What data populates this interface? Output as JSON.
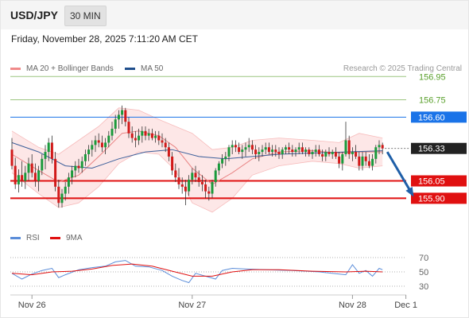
{
  "header": {
    "symbol": "USD/JPY",
    "timeframe": "30 MIN"
  },
  "datetime": "Friday, November 28, 2025 7:11:20 AM CET",
  "legend": {
    "ma20": {
      "label": "MA 20 + Bollinger Bands",
      "color": "#f08a8a"
    },
    "ma50": {
      "label": "MA 50",
      "color": "#1f4e8c"
    },
    "credit": "Research © 2025 Trading Central"
  },
  "rsi_legend": {
    "rsi": {
      "label": "RSI",
      "color": "#5b8dd9"
    },
    "ma9": {
      "label": "9MA",
      "color": "#e01010"
    }
  },
  "chart_data": {
    "type": "candlestick",
    "price_range": [
      155.8,
      157.0
    ],
    "levels": [
      {
        "value": "156.95",
        "price": 156.95,
        "kind": "target",
        "color": "#5aa02c"
      },
      {
        "value": "156.75",
        "price": 156.75,
        "kind": "target",
        "color": "#5aa02c"
      },
      {
        "value": "156.60",
        "price": 156.6,
        "kind": "pivot",
        "color": "#1a73e8"
      },
      {
        "value": "156.05",
        "price": 156.05,
        "kind": "support",
        "color": "#e01010"
      },
      {
        "value": "155.90",
        "price": 155.9,
        "kind": "support",
        "color": "#e01010"
      }
    ],
    "last_price": "156.33",
    "x_ticks": [
      {
        "label": "Nov 26",
        "index": 6
      },
      {
        "label": "Nov 27",
        "index": 54
      },
      {
        "label": "Nov 28",
        "index": 102
      },
      {
        "label": "Dec 1",
        "index": 118
      }
    ],
    "rsi_ticks": [
      "70",
      "50",
      "30"
    ],
    "rsi_range": [
      20,
      80
    ],
    "candles": [
      [
        156.32,
        156.42,
        156.15,
        156.18
      ],
      [
        156.18,
        156.25,
        155.98,
        156.02
      ],
      [
        156.02,
        156.15,
        155.95,
        156.1
      ],
      [
        156.1,
        156.22,
        156.0,
        156.05
      ],
      [
        156.05,
        156.18,
        155.98,
        156.12
      ],
      [
        156.12,
        156.25,
        156.05,
        156.2
      ],
      [
        156.2,
        156.28,
        156.08,
        156.12
      ],
      [
        156.12,
        156.2,
        156.0,
        156.05
      ],
      [
        156.05,
        156.18,
        155.96,
        156.14
      ],
      [
        156.14,
        156.28,
        156.1,
        156.24
      ],
      [
        156.24,
        156.36,
        156.15,
        156.3
      ],
      [
        156.3,
        156.42,
        156.22,
        156.38
      ],
      [
        156.38,
        156.44,
        156.2,
        156.24
      ],
      [
        156.24,
        156.3,
        155.96,
        156.0
      ],
      [
        156.0,
        156.06,
        155.82,
        155.86
      ],
      [
        155.86,
        155.98,
        155.82,
        155.94
      ],
      [
        155.94,
        156.04,
        155.88,
        156.0
      ],
      [
        156.0,
        156.12,
        155.94,
        156.08
      ],
      [
        156.08,
        156.18,
        156.02,
        156.14
      ],
      [
        156.14,
        156.22,
        156.08,
        156.18
      ],
      [
        156.18,
        156.24,
        156.12,
        156.16
      ],
      [
        156.16,
        156.26,
        156.12,
        156.22
      ],
      [
        156.22,
        156.32,
        156.18,
        156.28
      ],
      [
        156.28,
        156.36,
        156.22,
        156.32
      ],
      [
        156.32,
        156.4,
        156.26,
        156.36
      ],
      [
        156.36,
        156.44,
        156.3,
        156.4
      ],
      [
        156.4,
        156.46,
        156.34,
        156.38
      ],
      [
        156.38,
        156.44,
        156.3,
        156.34
      ],
      [
        156.34,
        156.42,
        156.28,
        156.38
      ],
      [
        156.38,
        156.48,
        156.34,
        156.44
      ],
      [
        156.44,
        156.56,
        156.4,
        156.5
      ],
      [
        156.5,
        156.62,
        156.46,
        156.58
      ],
      [
        156.58,
        156.66,
        156.5,
        156.62
      ],
      [
        156.62,
        156.7,
        156.54,
        156.66
      ],
      [
        156.66,
        156.68,
        156.52,
        156.56
      ],
      [
        156.56,
        156.6,
        156.42,
        156.46
      ],
      [
        156.46,
        156.52,
        156.38,
        156.42
      ],
      [
        156.42,
        156.48,
        156.34,
        156.4
      ],
      [
        156.4,
        156.5,
        156.36,
        156.44
      ],
      [
        156.44,
        156.52,
        156.38,
        156.48
      ],
      [
        156.48,
        156.52,
        156.4,
        156.44
      ],
      [
        156.44,
        156.5,
        156.4,
        156.46
      ],
      [
        156.46,
        156.5,
        156.4,
        156.42
      ],
      [
        156.42,
        156.48,
        156.38,
        156.44
      ],
      [
        156.44,
        156.48,
        156.36,
        156.4
      ],
      [
        156.4,
        156.46,
        156.34,
        156.38
      ],
      [
        156.38,
        156.42,
        156.3,
        156.34
      ],
      [
        156.34,
        156.38,
        156.22,
        156.26
      ],
      [
        156.26,
        156.3,
        156.1,
        156.14
      ],
      [
        156.14,
        156.2,
        156.04,
        156.08
      ],
      [
        156.08,
        156.16,
        155.98,
        156.02
      ],
      [
        156.02,
        156.08,
        155.94,
        156.0
      ],
      [
        156.0,
        156.06,
        155.84,
        155.96
      ],
      [
        155.96,
        156.1,
        155.92,
        156.06
      ],
      [
        156.06,
        156.16,
        156.02,
        156.12
      ],
      [
        156.12,
        156.18,
        156.04,
        156.08
      ],
      [
        156.08,
        156.14,
        156.0,
        156.04
      ],
      [
        156.04,
        156.1,
        155.96,
        156.02
      ],
      [
        156.02,
        156.06,
        155.9,
        155.96
      ],
      [
        155.96,
        156.0,
        155.88,
        155.94
      ],
      [
        155.94,
        156.06,
        155.9,
        156.04
      ],
      [
        156.04,
        156.16,
        156.0,
        156.14
      ],
      [
        156.14,
        156.22,
        156.1,
        156.2
      ],
      [
        156.2,
        156.28,
        156.16,
        156.24
      ],
      [
        156.24,
        156.3,
        156.18,
        156.26
      ],
      [
        156.26,
        156.36,
        156.22,
        156.34
      ],
      [
        156.34,
        156.4,
        156.28,
        156.36
      ],
      [
        156.36,
        156.4,
        156.3,
        156.34
      ],
      [
        156.34,
        156.38,
        156.28,
        156.3
      ],
      [
        156.3,
        156.36,
        156.24,
        156.32
      ],
      [
        156.32,
        156.38,
        156.26,
        156.34
      ],
      [
        156.34,
        156.42,
        156.3,
        156.36
      ],
      [
        156.36,
        156.4,
        156.28,
        156.32
      ],
      [
        156.32,
        156.36,
        156.24,
        156.28
      ],
      [
        156.28,
        156.34,
        156.22,
        156.3
      ],
      [
        156.3,
        156.36,
        156.26,
        156.32
      ],
      [
        156.32,
        156.38,
        156.28,
        156.34
      ],
      [
        156.34,
        156.38,
        156.28,
        156.3
      ],
      [
        156.3,
        156.36,
        156.26,
        156.32
      ],
      [
        156.32,
        156.36,
        156.26,
        156.3
      ],
      [
        156.3,
        156.34,
        156.24,
        156.28
      ],
      [
        156.28,
        156.34,
        156.24,
        156.32
      ],
      [
        156.32,
        156.36,
        156.28,
        156.34
      ],
      [
        156.34,
        156.38,
        156.28,
        156.32
      ],
      [
        156.32,
        156.36,
        156.26,
        156.3
      ],
      [
        156.3,
        156.34,
        156.26,
        156.32
      ],
      [
        156.32,
        156.38,
        156.28,
        156.34
      ],
      [
        156.34,
        156.38,
        156.28,
        156.3
      ],
      [
        156.3,
        156.34,
        156.26,
        156.32
      ],
      [
        156.32,
        156.34,
        156.26,
        156.28
      ],
      [
        156.28,
        156.32,
        156.24,
        156.3
      ],
      [
        156.3,
        156.36,
        156.26,
        156.32
      ],
      [
        156.32,
        156.36,
        156.26,
        156.28
      ],
      [
        156.28,
        156.32,
        156.22,
        156.26
      ],
      [
        156.26,
        156.32,
        156.22,
        156.3
      ],
      [
        156.3,
        156.34,
        156.26,
        156.28
      ],
      [
        156.28,
        156.32,
        156.24,
        156.3
      ],
      [
        156.3,
        156.34,
        156.24,
        156.26
      ],
      [
        156.26,
        156.3,
        156.16,
        156.2
      ],
      [
        156.2,
        156.3,
        156.14,
        156.28
      ],
      [
        156.28,
        156.56,
        156.26,
        156.4
      ],
      [
        156.4,
        156.44,
        156.24,
        156.28
      ],
      [
        156.28,
        156.34,
        156.22,
        156.3
      ],
      [
        156.3,
        156.36,
        156.24,
        156.26
      ],
      [
        156.26,
        156.3,
        156.14,
        156.18
      ],
      [
        156.18,
        156.3,
        156.14,
        156.26
      ],
      [
        156.26,
        156.3,
        156.18,
        156.22
      ],
      [
        156.22,
        156.28,
        156.16,
        156.18
      ],
      [
        156.18,
        156.28,
        156.14,
        156.24
      ],
      [
        156.24,
        156.36,
        156.2,
        156.34
      ],
      [
        156.34,
        156.4,
        156.28,
        156.36
      ],
      [
        156.36,
        156.38,
        156.28,
        156.33
      ]
    ],
    "ma20": [
      [
        0,
        156.28
      ],
      [
        8,
        156.14
      ],
      [
        14,
        156.04
      ],
      [
        20,
        156.1
      ],
      [
        26,
        156.26
      ],
      [
        33,
        156.46
      ],
      [
        38,
        156.48
      ],
      [
        44,
        156.44
      ],
      [
        49,
        156.34
      ],
      [
        54,
        156.16
      ],
      [
        60,
        156.02
      ],
      [
        66,
        156.12
      ],
      [
        72,
        156.24
      ],
      [
        80,
        156.3
      ],
      [
        90,
        156.31
      ],
      [
        98,
        156.29
      ],
      [
        104,
        156.3
      ],
      [
        111,
        156.3
      ]
    ],
    "bb_upper": [
      [
        0,
        156.48
      ],
      [
        8,
        156.34
      ],
      [
        14,
        156.28
      ],
      [
        20,
        156.4
      ],
      [
        26,
        156.52
      ],
      [
        32,
        156.68
      ],
      [
        38,
        156.66
      ],
      [
        44,
        156.58
      ],
      [
        49,
        156.52
      ],
      [
        54,
        156.46
      ],
      [
        60,
        156.32
      ],
      [
        66,
        156.34
      ],
      [
        72,
        156.4
      ],
      [
        80,
        156.42
      ],
      [
        90,
        156.4
      ],
      [
        98,
        156.38
      ],
      [
        104,
        156.46
      ],
      [
        111,
        156.42
      ]
    ],
    "bb_lower": [
      [
        0,
        156.12
      ],
      [
        8,
        155.94
      ],
      [
        14,
        155.82
      ],
      [
        20,
        155.86
      ],
      [
        26,
        156.0
      ],
      [
        32,
        156.2
      ],
      [
        38,
        156.3
      ],
      [
        44,
        156.28
      ],
      [
        49,
        156.14
      ],
      [
        54,
        155.86
      ],
      [
        60,
        155.78
      ],
      [
        66,
        155.9
      ],
      [
        72,
        156.1
      ],
      [
        80,
        156.18
      ],
      [
        90,
        156.22
      ],
      [
        98,
        156.2
      ],
      [
        104,
        156.16
      ],
      [
        111,
        156.18
      ]
    ],
    "ma50": [
      [
        0,
        156.38
      ],
      [
        8,
        156.3
      ],
      [
        16,
        156.18
      ],
      [
        24,
        156.16
      ],
      [
        32,
        156.24
      ],
      [
        40,
        156.3
      ],
      [
        48,
        156.32
      ],
      [
        56,
        156.26
      ],
      [
        64,
        156.24
      ],
      [
        72,
        156.26
      ],
      [
        80,
        156.28
      ],
      [
        90,
        156.29
      ],
      [
        100,
        156.3
      ],
      [
        111,
        156.31
      ]
    ],
    "rsi": [
      [
        0,
        48
      ],
      [
        3,
        40
      ],
      [
        6,
        47
      ],
      [
        9,
        52
      ],
      [
        12,
        55
      ],
      [
        14,
        42
      ],
      [
        16,
        46
      ],
      [
        20,
        53
      ],
      [
        24,
        56
      ],
      [
        28,
        58
      ],
      [
        31,
        64
      ],
      [
        34,
        66
      ],
      [
        37,
        58
      ],
      [
        41,
        57
      ],
      [
        45,
        52
      ],
      [
        48,
        44
      ],
      [
        51,
        38
      ],
      [
        53,
        35
      ],
      [
        55,
        48
      ],
      [
        58,
        44
      ],
      [
        61,
        40
      ],
      [
        63,
        52
      ],
      [
        66,
        55
      ],
      [
        70,
        54
      ],
      [
        76,
        53
      ],
      [
        84,
        52
      ],
      [
        92,
        50
      ],
      [
        100,
        46
      ],
      [
        102,
        60
      ],
      [
        104,
        48
      ],
      [
        106,
        52
      ],
      [
        108,
        44
      ],
      [
        110,
        55
      ],
      [
        111,
        53
      ]
    ],
    "rsi_ma9": [
      [
        0,
        48
      ],
      [
        6,
        46
      ],
      [
        12,
        50
      ],
      [
        18,
        51
      ],
      [
        24,
        54
      ],
      [
        30,
        59
      ],
      [
        36,
        61
      ],
      [
        42,
        58
      ],
      [
        48,
        51
      ],
      [
        54,
        44
      ],
      [
        60,
        44
      ],
      [
        66,
        50
      ],
      [
        72,
        53
      ],
      [
        80,
        53
      ],
      [
        90,
        51
      ],
      [
        100,
        50
      ],
      [
        106,
        51
      ],
      [
        111,
        50
      ]
    ],
    "forecast_arrow": {
      "from": [
        111,
        156.3
      ],
      "to": [
        120,
        155.93
      ],
      "color": "#1f5fa8"
    }
  }
}
